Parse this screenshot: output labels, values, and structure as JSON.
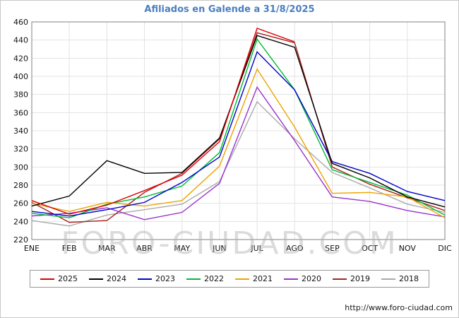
{
  "title": "Afiliados en Galende a 31/8/2025",
  "watermark": "FORO-CIUDAD.COM",
  "footer": {
    "url": "http://www.foro-ciudad.com"
  },
  "chart_data": {
    "type": "line",
    "title": "Afiliados en Galende a 31/8/2025",
    "categories": [
      "ENE",
      "FEB",
      "MAR",
      "ABR",
      "MAY",
      "JUN",
      "JUL",
      "AGO",
      "SEP",
      "OCT",
      "NOV",
      "DIC"
    ],
    "ylabel": "",
    "xlabel": "",
    "ylim": [
      220,
      460
    ],
    "ytick_step": 20,
    "grid": true,
    "legend_position": "bottom",
    "series": [
      {
        "name": "2025",
        "color": "#dd0000",
        "values": [
          263,
          248,
          258,
          274,
          291,
          328,
          453,
          438
        ]
      },
      {
        "name": "2024",
        "color": "#000000",
        "values": [
          257,
          268,
          307,
          293,
          294,
          332,
          445,
          432,
          304,
          288,
          267,
          256
        ]
      },
      {
        "name": "2023",
        "color": "#0000cc",
        "values": [
          251,
          246,
          253,
          261,
          283,
          311,
          427,
          385,
          306,
          293,
          273,
          263
        ]
      },
      {
        "name": "2022",
        "color": "#00bb33",
        "values": [
          249,
          244,
          259,
          267,
          279,
          316,
          441,
          385,
          297,
          283,
          269,
          247
        ]
      },
      {
        "name": "2021",
        "color": "#eda400",
        "values": [
          260,
          251,
          261,
          257,
          263,
          301,
          408,
          344,
          271,
          272,
          267,
          244
        ]
      },
      {
        "name": "2020",
        "color": "#9933cc",
        "values": [
          246,
          249,
          255,
          242,
          250,
          282,
          388,
          329,
          267,
          262,
          252,
          245
        ]
      },
      {
        "name": "2019",
        "color": "#aa2222",
        "values": [
          261,
          239,
          241,
          272,
          293,
          331,
          448,
          437,
          300,
          281,
          266,
          252
        ]
      },
      {
        "name": "2018",
        "color": "#aaaaaa",
        "values": [
          241,
          235,
          247,
          253,
          259,
          284,
          372,
          331,
          294,
          277,
          259,
          250
        ]
      }
    ]
  }
}
